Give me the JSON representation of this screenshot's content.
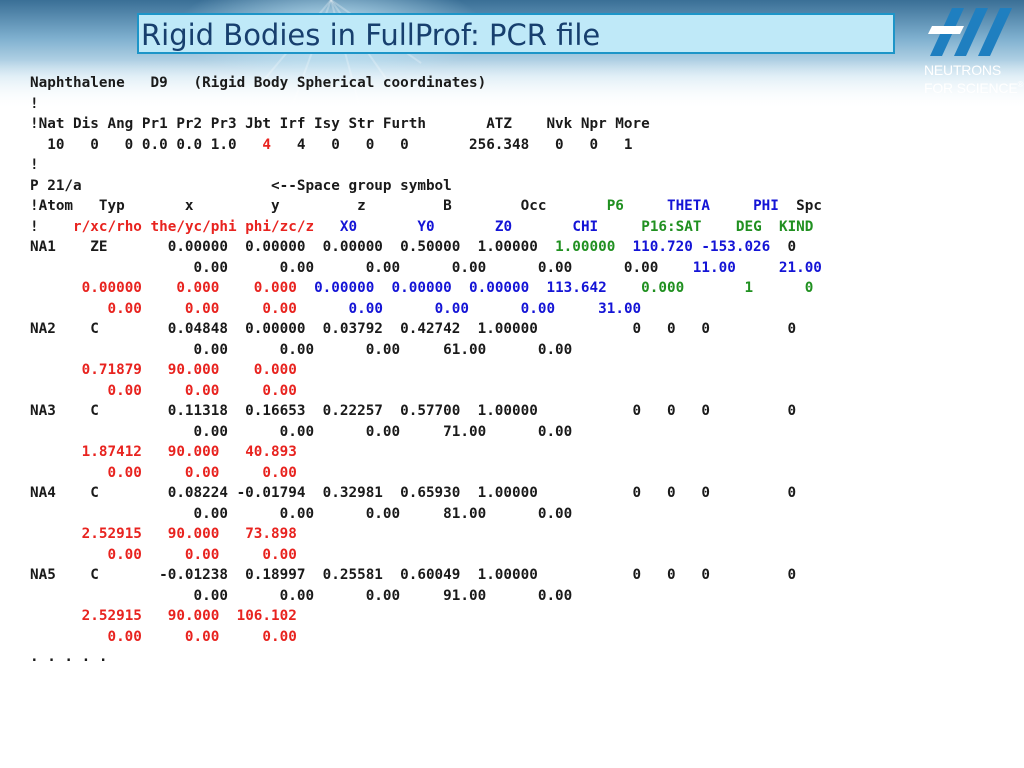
{
  "slide": {
    "title": "Rigid Bodies in FullProf: PCR file",
    "logo": {
      "tagline_1": "NEUTRONS",
      "tagline_2": "FOR SCIENCE",
      "mark": "®"
    }
  },
  "colors": {
    "red": "#e8231f",
    "blue": "#1414d6",
    "green": "#209020",
    "text": "#1a1a1a",
    "title_text": "#173f6e",
    "title_bg": "#bfe9f8"
  },
  "pcr_lines": [
    [
      {
        "t": "Naphthalene   D9   (Rigid Body Spherical coordinates)"
      }
    ],
    [
      {
        "t": "!"
      }
    ],
    [
      {
        "t": "!Nat Dis Ang Pr1 Pr2 Pr3 Jbt Irf Isy Str Furth       ATZ    Nvk Npr More"
      }
    ],
    [
      {
        "t": "  10   0   0 0.0 0.0 1.0   "
      },
      {
        "t": "4",
        "c": "r"
      },
      {
        "t": "   4   0   0   0       256.348   0   0   1"
      }
    ],
    [
      {
        "t": "!"
      }
    ],
    [
      {
        "t": "P 21/a                      <--Space group symbol"
      }
    ],
    [
      {
        "t": "!Atom   Typ       x         y         z         B        Occ       "
      },
      {
        "t": "P6",
        "c": "g"
      },
      {
        "t": "     "
      },
      {
        "t": "THETA",
        "c": "b"
      },
      {
        "t": "     "
      },
      {
        "t": "PHI",
        "c": "b"
      },
      {
        "t": "  Spc"
      }
    ],
    [
      {
        "t": "!    "
      },
      {
        "t": "r/xc/rho the/yc/phi phi/zc/z",
        "c": "r"
      },
      {
        "t": "   "
      },
      {
        "t": "X0",
        "c": "b"
      },
      {
        "t": "       "
      },
      {
        "t": "Y0",
        "c": "b"
      },
      {
        "t": "       "
      },
      {
        "t": "Z0",
        "c": "b"
      },
      {
        "t": "       "
      },
      {
        "t": "CHI",
        "c": "b"
      },
      {
        "t": "     "
      },
      {
        "t": "P16:SAT",
        "c": "g"
      },
      {
        "t": "    "
      },
      {
        "t": "DEG",
        "c": "g"
      },
      {
        "t": "  "
      },
      {
        "t": "KIND",
        "c": "g"
      }
    ],
    [
      {
        "t": "NA1    ZE       0.00000  0.00000  0.00000  0.50000  1.00000  "
      },
      {
        "t": "1.00000",
        "c": "g"
      },
      {
        "t": "  "
      },
      {
        "t": "110.720 -153.026",
        "c": "b"
      },
      {
        "t": "  0"
      }
    ],
    [
      {
        "t": "                   0.00      0.00      0.00      0.00      0.00      0.00    "
      },
      {
        "t": "11.00",
        "c": "b"
      },
      {
        "t": "     "
      },
      {
        "t": "21.00",
        "c": "b"
      }
    ],
    [
      {
        "t": "      "
      },
      {
        "t": "0.00000    0.000    0.000",
        "c": "r"
      },
      {
        "t": "  "
      },
      {
        "t": "0.00000  0.00000  0.00000  113.642",
        "c": "b"
      },
      {
        "t": "    "
      },
      {
        "t": "0.000       1      0",
        "c": "g"
      }
    ],
    [
      {
        "t": "         "
      },
      {
        "t": "0.00     0.00     0.00",
        "c": "r"
      },
      {
        "t": "      "
      },
      {
        "t": "0.00      0.00      0.00     31.00",
        "c": "b"
      }
    ],
    [
      {
        "t": "NA2    C        0.04848  0.00000  0.03792  0.42742  1.00000           0   0   0         0"
      }
    ],
    [
      {
        "t": "                   0.00      0.00      0.00     61.00      0.00"
      }
    ],
    [
      {
        "t": "      "
      },
      {
        "t": "0.71879   90.000    0.000",
        "c": "r"
      }
    ],
    [
      {
        "t": "         "
      },
      {
        "t": "0.00     0.00     0.00",
        "c": "r"
      }
    ],
    [
      {
        "t": "NA3    C        0.11318  0.16653  0.22257  0.57700  1.00000           0   0   0         0"
      }
    ],
    [
      {
        "t": "                   0.00      0.00      0.00     71.00      0.00"
      }
    ],
    [
      {
        "t": "      "
      },
      {
        "t": "1.87412   90.000   40.893",
        "c": "r"
      }
    ],
    [
      {
        "t": "         "
      },
      {
        "t": "0.00     0.00     0.00",
        "c": "r"
      }
    ],
    [
      {
        "t": "NA4    C        0.08224 -0.01794  0.32981  0.65930  1.00000           0   0   0         0"
      }
    ],
    [
      {
        "t": "                   0.00      0.00      0.00     81.00      0.00"
      }
    ],
    [
      {
        "t": "      "
      },
      {
        "t": "2.52915   90.000   73.898",
        "c": "r"
      }
    ],
    [
      {
        "t": "         "
      },
      {
        "t": "0.00     0.00     0.00",
        "c": "r"
      }
    ],
    [
      {
        "t": "NA5    C       -0.01238  0.18997  0.25581  0.60049  1.00000           0   0   0         0"
      }
    ],
    [
      {
        "t": "                   0.00      0.00      0.00     91.00      0.00"
      }
    ],
    [
      {
        "t": "      "
      },
      {
        "t": "2.52915   90.000  106.102",
        "c": "r"
      }
    ],
    [
      {
        "t": "         "
      },
      {
        "t": "0.00     0.00     0.00",
        "c": "r"
      }
    ],
    [
      {
        "t": ". . . . ."
      }
    ]
  ]
}
